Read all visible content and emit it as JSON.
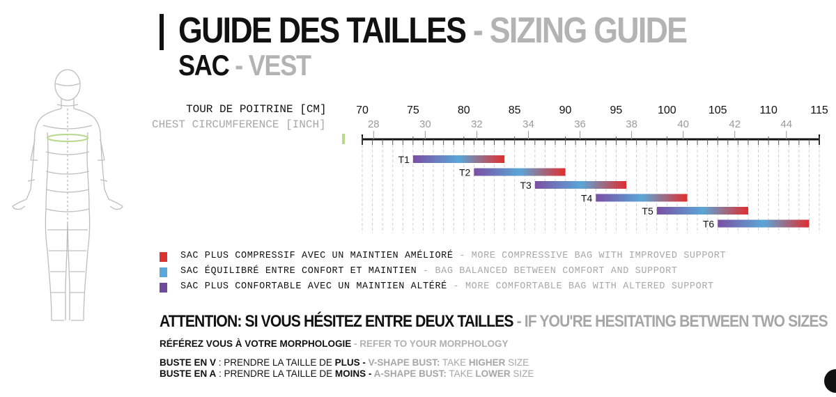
{
  "title": {
    "main": "GUIDE DES TAILLES",
    "sep": " - ",
    "alt": "SIZING GUIDE"
  },
  "subtitle": {
    "main": "SAC",
    "sep": " - ",
    "alt": "VEST"
  },
  "axis": {
    "cm_label": "TOUR DE POITRINE [CM]",
    "inch_label": "CHEST CIRCUMFERENCE [INCH]",
    "cm_ticks": [
      "70",
      "75",
      "80",
      "85",
      "90",
      "95",
      "100",
      "105",
      "110",
      "115"
    ],
    "inch_ticks": [
      "28",
      "30",
      "32",
      "34",
      "36",
      "38",
      "40",
      "42",
      "44"
    ]
  },
  "chart_data": {
    "type": "bar",
    "orientation": "horizontal-range",
    "xlabel": "TOUR DE POITRINE [CM]",
    "xlabel_secondary": "CHEST CIRCUMFERENCE [INCH]",
    "xlim": [
      70,
      115
    ],
    "bars": [
      {
        "label": "T1",
        "start": 75,
        "end": 84
      },
      {
        "label": "T2",
        "start": 81,
        "end": 90
      },
      {
        "label": "T3",
        "start": 87,
        "end": 96
      },
      {
        "label": "T4",
        "start": 93,
        "end": 102
      },
      {
        "label": "T5",
        "start": 99,
        "end": 108
      },
      {
        "label": "T6",
        "start": 105,
        "end": 114
      }
    ],
    "gradient_colors": [
      "#7b4fa3",
      "#5aa7d8",
      "#e02e2e"
    ]
  },
  "legend": [
    {
      "color": "#d93434",
      "fr": "SAC PLUS COMPRESSIF AVEC UN MAINTIEN AMÉLIORÉ",
      "sep": " - ",
      "en": "MORE COMPRESSIVE BAG WITH IMPROVED SUPPORT"
    },
    {
      "color": "#5aa7d8",
      "fr": "SAC ÉQUILIBRÉ ENTRE CONFORT ET MAINTIEN",
      "sep": " - ",
      "en": "BAG BALANCED BETWEEN COMFORT AND SUPPORT"
    },
    {
      "color": "#6d4a9a",
      "fr": "SAC PLUS CONFORTABLE AVEC UN MAINTIEN ALTÉRÉ",
      "sep": " - ",
      "en": "MORE COMFORTABLE BAG WITH ALTERED SUPPORT"
    }
  ],
  "attention": {
    "fr": "ATTENTION: SI VOUS HÉSITEZ ENTRE DEUX TAILLES",
    "sep": " - ",
    "en": "IF YOU'RE HESITATING BETWEEN TWO SIZES"
  },
  "morphology": {
    "fr": "RÉFÉREZ VOUS À VOTRE MORPHOLOGIE",
    "sep": " - ",
    "en": "REFER TO YOUR MORPHOLOGY"
  },
  "bust_v": {
    "label": "BUSTE EN V",
    "text": " : PRENDRE LA TAILLE DE ",
    "keyword": "PLUS",
    "sep": " - ",
    "en_label": "V-SHAPE BUST:",
    "en_text": " TAKE ",
    "en_keyword": "HIGHER",
    "en_end": " SIZE"
  },
  "bust_a": {
    "label": "BUSTE EN A",
    "text": "  : PRENDRE LA TAILLE DE ",
    "keyword": "MOINS",
    "sep": " - ",
    "en_label": "A-SHAPE BUST:",
    "en_text": " TAKE ",
    "en_keyword": "LOWER",
    "en_end": " SIZE"
  },
  "colors": {
    "accent_green": "#b7d98b",
    "gray_text": "#a8a8a8"
  },
  "icons": {
    "figure": "human-body-outline-icon"
  }
}
